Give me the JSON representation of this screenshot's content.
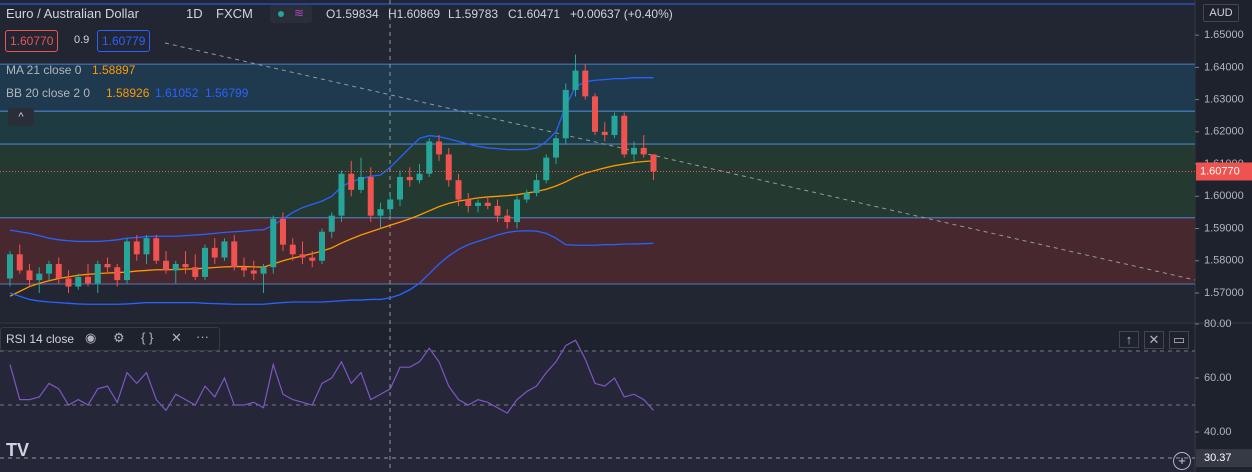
{
  "header": {
    "symbol": "Euro / Australian Dollar",
    "interval": "1D",
    "source": "FXCM",
    "open": "O1.59834",
    "high": "H1.60869",
    "low": "L1.59783",
    "close": "C1.60471",
    "change": "+0.00637 (+0.40%)",
    "bid": "1.60770",
    "spread": "0.9",
    "ask": "1.60779",
    "ma_label": "MA 21 close 0",
    "ma_value": "1.58897",
    "bb_label": "BB 20 close 2 0",
    "bb_basis": "1.58926",
    "bb_upper": "1.61052",
    "bb_lower": "1.56799"
  },
  "chart_data": [
    {
      "type": "candlestick",
      "currency": "AUD",
      "up_color": "#26a69a",
      "down_color": "#ef5350",
      "open": [
        1.5745,
        1.582,
        1.577,
        1.574,
        1.576,
        1.579,
        1.5745,
        1.572,
        1.575,
        1.573,
        1.579,
        1.578,
        1.574,
        1.586,
        1.582,
        1.587,
        1.58,
        1.577,
        1.579,
        1.578,
        1.575,
        1.584,
        1.581,
        1.586,
        1.578,
        1.577,
        1.576,
        1.578,
        1.593,
        1.585,
        1.582,
        1.581,
        1.58,
        1.589,
        1.594,
        1.607,
        1.602,
        1.606,
        1.594,
        1.596,
        1.599,
        1.606,
        1.605,
        1.607,
        1.617,
        1.613,
        1.605,
        1.599,
        1.597,
        1.598,
        1.597,
        1.594,
        1.592,
        1.599,
        1.601,
        1.605,
        1.612,
        1.618,
        1.633,
        1.639,
        1.631,
        1.62,
        1.619,
        1.625,
        1.613,
        1.615,
        1.613
      ],
      "high": [
        1.583,
        1.585,
        1.579,
        1.578,
        1.58,
        1.581,
        1.577,
        1.576,
        1.579,
        1.58,
        1.581,
        1.579,
        1.587,
        1.588,
        1.588,
        1.588,
        1.583,
        1.58,
        1.583,
        1.582,
        1.585,
        1.587,
        1.587,
        1.588,
        1.581,
        1.58,
        1.579,
        1.594,
        1.595,
        1.587,
        1.586,
        1.583,
        1.59,
        1.595,
        1.608,
        1.611,
        1.612,
        1.609,
        1.598,
        1.601,
        1.608,
        1.609,
        1.61,
        1.618,
        1.619,
        1.615,
        1.607,
        1.601,
        1.599,
        1.6,
        1.599,
        1.596,
        1.6,
        1.602,
        1.607,
        1.613,
        1.619,
        1.635,
        1.644,
        1.641,
        1.632,
        1.623,
        1.626,
        1.626,
        1.617,
        1.619,
        1.613
      ],
      "low": [
        1.572,
        1.576,
        1.572,
        1.57,
        1.574,
        1.573,
        1.57,
        1.571,
        1.572,
        1.57,
        1.576,
        1.572,
        1.573,
        1.58,
        1.579,
        1.579,
        1.576,
        1.573,
        1.576,
        1.574,
        1.574,
        1.579,
        1.58,
        1.577,
        1.575,
        1.574,
        1.57,
        1.576,
        1.583,
        1.58,
        1.579,
        1.578,
        1.579,
        1.587,
        1.592,
        1.6,
        1.601,
        1.592,
        1.59,
        1.594,
        1.597,
        1.603,
        1.604,
        1.606,
        1.611,
        1.603,
        1.597,
        1.595,
        1.595,
        1.596,
        1.592,
        1.59,
        1.59,
        1.598,
        1.6,
        1.604,
        1.61,
        1.616,
        1.631,
        1.63,
        1.619,
        1.617,
        1.618,
        1.612,
        1.611,
        1.612,
        1.605
      ],
      "close": [
        1.582,
        1.577,
        1.574,
        1.576,
        1.579,
        1.5745,
        1.572,
        1.575,
        1.573,
        1.579,
        1.578,
        1.574,
        1.586,
        1.582,
        1.587,
        1.58,
        1.577,
        1.579,
        1.578,
        1.575,
        1.584,
        1.581,
        1.586,
        1.578,
        1.577,
        1.576,
        1.578,
        1.593,
        1.585,
        1.582,
        1.581,
        1.58,
        1.589,
        1.594,
        1.607,
        1.602,
        1.606,
        1.594,
        1.596,
        1.599,
        1.606,
        1.605,
        1.607,
        1.617,
        1.613,
        1.605,
        1.599,
        1.597,
        1.598,
        1.597,
        1.594,
        1.592,
        1.599,
        1.601,
        1.605,
        1.612,
        1.618,
        1.633,
        1.639,
        1.631,
        1.62,
        1.619,
        1.625,
        1.613,
        1.615,
        1.613,
        1.6077
      ],
      "series": [
        {
          "name": "MA 21",
          "color": "#ff9800",
          "values": [
            1.569,
            1.5705,
            1.572,
            1.573,
            1.5738,
            1.5745,
            1.575,
            1.5755,
            1.5758,
            1.576,
            1.5762,
            1.5763,
            1.5765,
            1.5768,
            1.577,
            1.5772,
            1.5772,
            1.5773,
            1.5774,
            1.5775,
            1.5777,
            1.5779,
            1.5781,
            1.5782,
            1.5782,
            1.5781,
            1.578,
            1.579,
            1.58,
            1.5808,
            1.5815,
            1.5822,
            1.583,
            1.584,
            1.5855,
            1.5868,
            1.588,
            1.589,
            1.59,
            1.591,
            1.592,
            1.593,
            1.5942,
            1.5955,
            1.5968,
            1.5978,
            1.5985,
            1.599,
            1.5995,
            1.5998,
            1.6,
            1.6002,
            1.6005,
            1.601,
            1.6015,
            1.6022,
            1.6032,
            1.6045,
            1.606,
            1.6072,
            1.608,
            1.6088,
            1.6095,
            1.61,
            1.6105,
            1.6108,
            1.611
          ]
        },
        {
          "name": "BB upper",
          "color": "#2962ff",
          "values": [
            1.5895,
            1.589,
            1.5885,
            1.5878,
            1.587,
            1.5865,
            1.5862,
            1.586,
            1.586,
            1.586,
            1.5862,
            1.5865,
            1.587,
            1.5872,
            1.5875,
            1.5876,
            1.5876,
            1.5876,
            1.5878,
            1.588,
            1.5882,
            1.5885,
            1.5888,
            1.589,
            1.5892,
            1.5895,
            1.5896,
            1.591,
            1.593,
            1.595,
            1.5965,
            1.5975,
            1.5985,
            1.6,
            1.603,
            1.6045,
            1.6055,
            1.6062,
            1.6066,
            1.609,
            1.612,
            1.615,
            1.618,
            1.6188,
            1.6185,
            1.6178,
            1.617,
            1.6162,
            1.6155,
            1.615,
            1.6148,
            1.6145,
            1.6145,
            1.6145,
            1.615,
            1.617,
            1.62,
            1.628,
            1.634,
            1.6355,
            1.636,
            1.6362,
            1.6365,
            1.6365,
            1.6368,
            1.6368,
            1.6368
          ]
        },
        {
          "name": "BB lower",
          "color": "#2962ff",
          "values": [
            1.57,
            1.569,
            1.568,
            1.5675,
            1.5672,
            1.567,
            1.5668,
            1.5666,
            1.5665,
            1.5665,
            1.5665,
            1.5665,
            1.5666,
            1.5668,
            1.567,
            1.567,
            1.567,
            1.567,
            1.567,
            1.567,
            1.5668,
            1.5667,
            1.5666,
            1.5665,
            1.5665,
            1.5665,
            1.5665,
            1.5668,
            1.567,
            1.5672,
            1.5672,
            1.5672,
            1.5672,
            1.5674,
            1.5676,
            1.5678,
            1.5678,
            1.568,
            1.568,
            1.5685,
            1.5695,
            1.571,
            1.573,
            1.576,
            1.579,
            1.5815,
            1.5835,
            1.585,
            1.586,
            1.587,
            1.588,
            1.5888,
            1.5892,
            1.5893,
            1.5892,
            1.5885,
            1.587,
            1.585,
            1.5848,
            1.5848,
            1.5848,
            1.585,
            1.585,
            1.5852,
            1.5852,
            1.5853,
            1.5854
          ]
        }
      ],
      "zones": [
        {
          "from": 1.641,
          "to": 1.6264,
          "color": "#1f3a4f"
        },
        {
          "from": 1.6264,
          "to": 1.6162,
          "color": "#1d3b40"
        },
        {
          "from": 1.6162,
          "to": 1.5933,
          "color": "#243a30"
        },
        {
          "from": 1.5933,
          "to": 1.5728,
          "color": "#47282e"
        }
      ],
      "last_price": {
        "value": 1.6077,
        "label": "1.60770"
      },
      "ylim": [
        1.561,
        1.6609
      ],
      "yticks": [
        {
          "value": 1.57,
          "label": "1.57000"
        },
        {
          "value": 1.58,
          "label": "1.58000"
        },
        {
          "value": 1.59,
          "label": "1.59000"
        },
        {
          "value": 1.6,
          "label": "1.60000"
        },
        {
          "value": 1.61,
          "label": "1.61000"
        },
        {
          "value": 1.62,
          "label": "1.62000"
        },
        {
          "value": 1.63,
          "label": "1.63000"
        },
        {
          "value": 1.64,
          "label": "1.64000"
        },
        {
          "value": 1.65,
          "label": "1.65000"
        }
      ]
    },
    {
      "type": "line",
      "title": "RSI 14 close",
      "color": "#7e57c2",
      "values": [
        65,
        52,
        52,
        53,
        58,
        56,
        50,
        52,
        50,
        56,
        57,
        51,
        62,
        58,
        62,
        52,
        48,
        54,
        52,
        50,
        57,
        53,
        60,
        50,
        50,
        51,
        49,
        65,
        54,
        52,
        51,
        50,
        58,
        60,
        66,
        58,
        62,
        52,
        54,
        56,
        64,
        64,
        66,
        71,
        66,
        57,
        52,
        50,
        52,
        51,
        49,
        47,
        52,
        55,
        57,
        62,
        66,
        72,
        74,
        67,
        58,
        57,
        60,
        53,
        54,
        52,
        48
      ],
      "bands": [
        70,
        50
      ],
      "crosshair": 30.37,
      "ylim": [
        25.2,
        80
      ],
      "yticks": [
        {
          "value": 40,
          "label": "40.00"
        },
        {
          "value": 60,
          "label": "60.00"
        },
        {
          "value": 80,
          "label": "80.00"
        }
      ]
    }
  ]
}
